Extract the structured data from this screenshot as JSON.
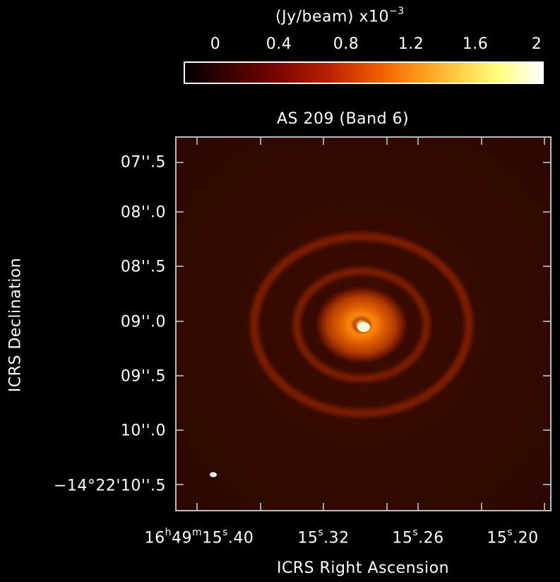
{
  "colorbar": {
    "unit": "(Jy/beam)  x10",
    "exponent": "−3",
    "ticks": [
      "0",
      "0.4",
      "0.8",
      "1.2",
      "1.6",
      "2"
    ],
    "colormap": [
      "#000000",
      "#3a0000",
      "#7a0600",
      "#b82000",
      "#ef5b00",
      "#ff9a1a",
      "#ffd34d",
      "#ffff80",
      "#ffffff"
    ]
  },
  "title": "AS 209 (Band 6)",
  "y_axis": {
    "label": "ICRS Declination",
    "ticks": [
      "07''.5",
      "08''.0",
      "08''.5",
      "09''.0",
      "09''.5",
      "10''.0",
      "−14°22'10''.5"
    ]
  },
  "x_axis": {
    "label": "ICRS Right Ascension",
    "ticks": [
      {
        "main": "16",
        "s1": "h",
        "m": "49",
        "s2": "m",
        "sec": "15",
        "s3": "s",
        "frac": ".40"
      },
      {
        "sec": "15",
        "s3": "s",
        "frac": ".32"
      },
      {
        "sec": "15",
        "s3": "s",
        "frac": ".26"
      },
      {
        "sec": "15",
        "s3": "s",
        "frac": ".20"
      }
    ]
  }
}
